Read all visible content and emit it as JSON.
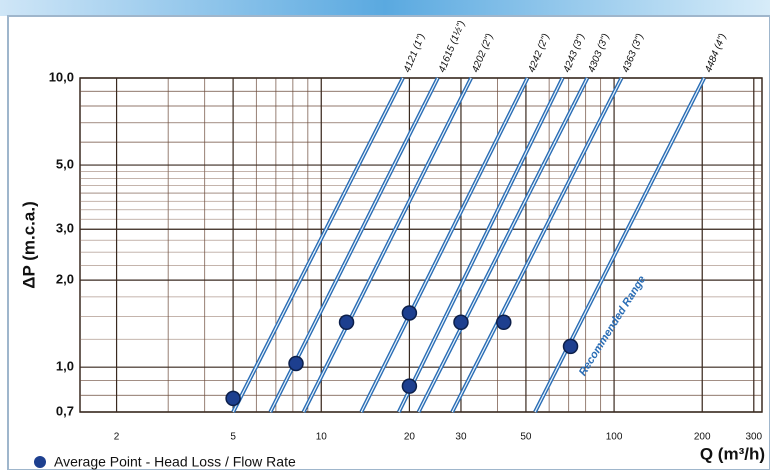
{
  "chart_data": {
    "type": "line",
    "y_label": "ΔP (m.c.a.)",
    "x_label": "Q (m³/h)",
    "annotation": "Recommended Range",
    "log_x": true,
    "log_y": true,
    "grid": true,
    "xlim": [
      1.5,
      320
    ],
    "ylim": [
      0.7,
      10
    ],
    "xticks": [
      2,
      5,
      10,
      20,
      30,
      50,
      100,
      200,
      300
    ],
    "yticks": [
      {
        "value": 10,
        "label": "10,0"
      },
      {
        "value": 5,
        "label": "5,0"
      },
      {
        "value": 3,
        "label": "3,0"
      },
      {
        "value": 2,
        "label": "2,0"
      },
      {
        "value": 1,
        "label": "1,0"
      },
      {
        "value": 0.7,
        "label": "0,7"
      }
    ],
    "series": [
      {
        "name": "4121 (1\")",
        "color": "#2a6db5",
        "x": [
          5,
          19
        ],
        "values": [
          0.7,
          10
        ]
      },
      {
        "name": "41615 (1½\")",
        "color": "#2a6db5",
        "x": [
          6.7,
          25
        ],
        "values": [
          0.7,
          10
        ]
      },
      {
        "name": "4202 (2\")",
        "color": "#2a6db5",
        "x": [
          8.7,
          32.5
        ],
        "values": [
          0.7,
          10
        ]
      },
      {
        "name": "4242 (2\")",
        "color": "#2a6db5",
        "x": [
          13.7,
          50.6
        ],
        "values": [
          0.7,
          10
        ]
      },
      {
        "name": "4243 (3\")",
        "color": "#2a6db5",
        "x": [
          18.4,
          66.7
        ],
        "values": [
          0.7,
          10
        ]
      },
      {
        "name": "4303 (3\")",
        "color": "#2a6db5",
        "x": [
          21.5,
          81
        ],
        "values": [
          0.7,
          10
        ]
      },
      {
        "name": "4363 (3\")",
        "color": "#2a6db5",
        "x": [
          28,
          106
        ],
        "values": [
          0.7,
          10
        ]
      },
      {
        "name": "4484 (4\")",
        "color": "#2a6db5",
        "x": [
          53.7,
          203
        ],
        "values": [
          0.7,
          10
        ]
      }
    ],
    "points": {
      "name": "Average Point - Head Loss / Flow Rate",
      "color": "#1d3f8f",
      "x": [
        5,
        8.2,
        12.2,
        20,
        20,
        30,
        42,
        71
      ],
      "values": [
        0.78,
        1.03,
        1.43,
        1.54,
        0.86,
        1.43,
        1.43,
        1.18
      ]
    }
  }
}
